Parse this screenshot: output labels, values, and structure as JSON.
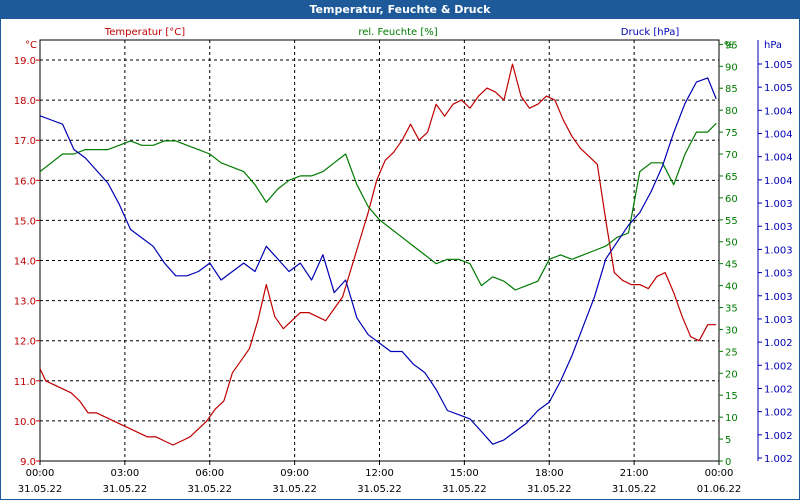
{
  "window": {
    "title": "Temperatur, Feuchte & Druck"
  },
  "colors": {
    "temperature": "#c00000",
    "humidity": "#007a00",
    "pressure": "#0000b4",
    "grid": "#000000",
    "title_bar": "#1e5a9a"
  },
  "chart_data": {
    "type": "line",
    "title": "Temperatur, Feuchte & Druck",
    "grid": true,
    "x_ticks": [
      {
        "time": "00:00",
        "date": "31.05.22"
      },
      {
        "time": "03:00",
        "date": "31.05.22"
      },
      {
        "time": "06:00",
        "date": "31.05.22"
      },
      {
        "time": "09:00",
        "date": "31.05.22"
      },
      {
        "time": "12:00",
        "date": "31.05.22"
      },
      {
        "time": "15:00",
        "date": "31.05.22"
      },
      {
        "time": "18:00",
        "date": "31.05.22"
      },
      {
        "time": "21:00",
        "date": "31.05.22"
      },
      {
        "time": "00:00",
        "date": "01.06.22"
      }
    ],
    "xlim": [
      0,
      24
    ],
    "axes": {
      "temperature": {
        "label": "Temperatur [°C]",
        "unit": "°C",
        "ylim": [
          9.0,
          19.5
        ],
        "ticks": [
          "9.0",
          "10.0",
          "11.0",
          "12.0",
          "13.0",
          "14.0",
          "15.0",
          "16.0",
          "17.0",
          "18.0",
          "19.0"
        ]
      },
      "humidity": {
        "label": "rel. Feuchte [%]",
        "unit": "%",
        "ylim": [
          0,
          96
        ],
        "ticks": [
          "0",
          "5",
          "10",
          "15",
          "20",
          "25",
          "30",
          "35",
          "40",
          "45",
          "50",
          "55",
          "60",
          "65",
          "70",
          "75",
          "80",
          "85",
          "90",
          "95"
        ]
      },
      "pressure": {
        "label": "Druck [hPa]",
        "unit": "hPa",
        "ylim": [
          0,
          1
        ],
        "ticks": [
          "1.002",
          "1.002",
          "1.002",
          "1.002",
          "1.002",
          "1.002",
          "1.003",
          "1.003",
          "1.003",
          "1.003",
          "1.003",
          "1.003",
          "1.004",
          "1.004",
          "1.004",
          "1.004",
          "1.005",
          "1.005"
        ]
      }
    },
    "series": [
      {
        "name": "Temperatur [°C]",
        "axis": "temperature",
        "color": "#c00000",
        "x": [
          0,
          0.2,
          0.5,
          0.8,
          1.1,
          1.4,
          1.7,
          2.0,
          2.3,
          2.6,
          2.9,
          3.2,
          3.5,
          3.8,
          4.1,
          4.4,
          4.7,
          5.0,
          5.3,
          5.6,
          5.9,
          6.2,
          6.5,
          6.8,
          7.1,
          7.4,
          7.7,
          8.0,
          8.3,
          8.6,
          8.9,
          9.2,
          9.5,
          9.8,
          10.1,
          10.4,
          10.7,
          11.0,
          11.3,
          11.6,
          11.9,
          12.2,
          12.5,
          12.8,
          13.1,
          13.4,
          13.7,
          14.0,
          14.3,
          14.6,
          14.9,
          15.2,
          15.5,
          15.8,
          16.1,
          16.4,
          16.7,
          17.0,
          17.3,
          17.6,
          17.9,
          18.2,
          18.5,
          18.8,
          19.1,
          19.4,
          19.7,
          20.0,
          20.3,
          20.6,
          20.9,
          21.2,
          21.5,
          21.8,
          22.1,
          22.4,
          22.7,
          23.0,
          23.3,
          23.6,
          23.9
        ],
        "values": [
          11.3,
          11.0,
          10.9,
          10.8,
          10.7,
          10.5,
          10.2,
          10.2,
          10.1,
          10.0,
          9.9,
          9.8,
          9.7,
          9.6,
          9.6,
          9.5,
          9.4,
          9.5,
          9.6,
          9.8,
          10.0,
          10.3,
          10.5,
          11.2,
          11.5,
          11.8,
          12.5,
          13.4,
          12.6,
          12.3,
          12.5,
          12.7,
          12.7,
          12.6,
          12.5,
          12.8,
          13.1,
          13.8,
          14.5,
          15.2,
          16.0,
          16.5,
          16.7,
          17.0,
          17.4,
          17.0,
          17.2,
          17.9,
          17.6,
          17.9,
          18.0,
          17.8,
          18.1,
          18.3,
          18.2,
          18.0,
          18.9,
          18.1,
          17.8,
          17.9,
          18.1,
          18.0,
          17.5,
          17.1,
          16.8,
          16.6,
          16.4,
          15.0,
          13.7,
          13.5,
          13.4,
          13.4,
          13.3,
          13.6,
          13.7,
          13.2,
          12.6,
          12.1,
          12.0,
          12.4,
          12.4
        ],
        "ylabel": "Temperatur [°C]"
      },
      {
        "name": "rel. Feuchte [%]",
        "axis": "humidity",
        "color": "#007a00",
        "x": [
          0,
          0.4,
          0.8,
          1.2,
          1.6,
          2.0,
          2.4,
          2.8,
          3.2,
          3.6,
          4.0,
          4.4,
          4.8,
          5.2,
          5.6,
          6.0,
          6.4,
          6.8,
          7.2,
          7.6,
          8.0,
          8.4,
          8.8,
          9.2,
          9.6,
          10.0,
          10.4,
          10.8,
          11.2,
          11.6,
          12.0,
          12.4,
          12.8,
          13.2,
          13.6,
          14.0,
          14.4,
          14.8,
          15.2,
          15.6,
          16.0,
          16.4,
          16.8,
          17.2,
          17.6,
          18.0,
          18.4,
          18.8,
          19.2,
          19.6,
          20.0,
          20.4,
          20.8,
          21.2,
          21.6,
          22.0,
          22.4,
          22.8,
          23.2,
          23.6,
          23.9
        ],
        "values": [
          66,
          68,
          70,
          70,
          71,
          71,
          71,
          72,
          73,
          72,
          72,
          73,
          73,
          72,
          71,
          70,
          68,
          67,
          66,
          63,
          59,
          62,
          64,
          65,
          65,
          66,
          68,
          70,
          63,
          58,
          55,
          53,
          51,
          49,
          47,
          45,
          46,
          46,
          45,
          40,
          42,
          41,
          39,
          40,
          41,
          46,
          47,
          46,
          47,
          48,
          49,
          51,
          52,
          66,
          68,
          68,
          63,
          70,
          75,
          75,
          77
        ],
        "ylabel": "rel. Feuchte [%]"
      },
      {
        "name": "Druck [hPa]",
        "axis": "pressure",
        "color": "#0000b4",
        "x": [
          0,
          0.4,
          0.8,
          1.2,
          1.6,
          2.0,
          2.4,
          2.8,
          3.2,
          3.6,
          4.0,
          4.4,
          4.8,
          5.2,
          5.6,
          6.0,
          6.4,
          6.8,
          7.2,
          7.6,
          8.0,
          8.4,
          8.8,
          9.2,
          9.6,
          10.0,
          10.4,
          10.8,
          11.2,
          11.6,
          12.0,
          12.4,
          12.8,
          13.2,
          13.6,
          14.0,
          14.4,
          14.8,
          15.2,
          15.6,
          16.0,
          16.4,
          16.8,
          17.2,
          17.6,
          18.0,
          18.4,
          18.8,
          19.2,
          19.6,
          20.0,
          20.4,
          20.8,
          21.2,
          21.6,
          22.0,
          22.4,
          22.8,
          23.2,
          23.6,
          23.9
        ],
        "values": [
          0.82,
          0.81,
          0.8,
          0.74,
          0.72,
          0.69,
          0.66,
          0.61,
          0.55,
          0.53,
          0.51,
          0.47,
          0.44,
          0.44,
          0.45,
          0.47,
          0.43,
          0.45,
          0.47,
          0.45,
          0.51,
          0.48,
          0.45,
          0.47,
          0.43,
          0.49,
          0.4,
          0.43,
          0.34,
          0.3,
          0.28,
          0.26,
          0.26,
          0.23,
          0.21,
          0.17,
          0.12,
          0.11,
          0.1,
          0.07,
          0.04,
          0.05,
          0.07,
          0.09,
          0.12,
          0.14,
          0.19,
          0.25,
          0.32,
          0.39,
          0.48,
          0.52,
          0.56,
          0.59,
          0.64,
          0.7,
          0.78,
          0.85,
          0.9,
          0.91,
          0.86
        ],
        "ylabel": "Druck [hPa]"
      }
    ]
  }
}
